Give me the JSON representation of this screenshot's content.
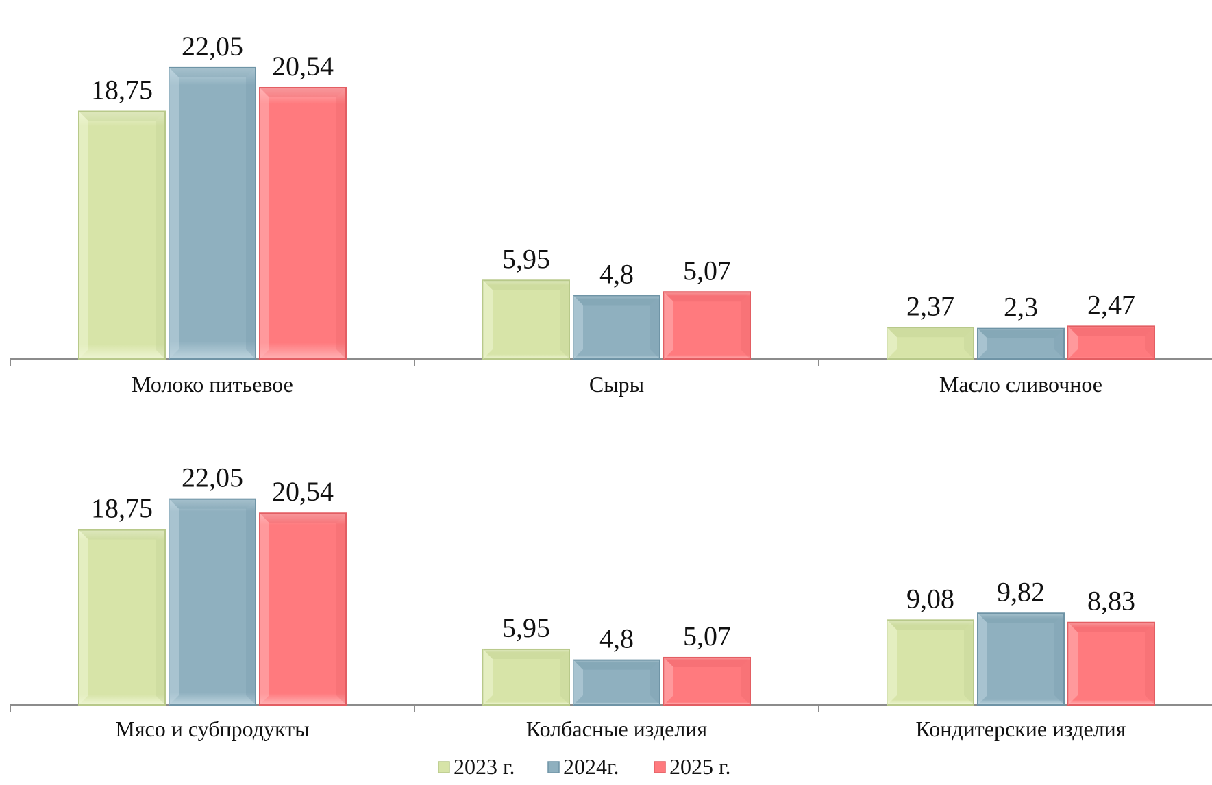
{
  "chart_data": [
    {
      "type": "bar",
      "categories": [
        "Молоко питьевое",
        "Сыры",
        "Масло сливочное"
      ],
      "series": [
        {
          "name": "2023 г.",
          "values": [
            18.75,
            5.95,
            2.37
          ],
          "labels": [
            "18,75",
            "5,95",
            "2,37"
          ]
        },
        {
          "name": "2024г.",
          "values": [
            22.05,
            4.8,
            2.3
          ],
          "labels": [
            "22,05",
            "4,8",
            "2,3"
          ]
        },
        {
          "name": "2025 г.",
          "values": [
            20.54,
            5.07,
            2.47
          ],
          "labels": [
            "20,54",
            "5,07",
            "2,47"
          ]
        }
      ],
      "ylim": [
        0,
        25
      ],
      "grid": false
    },
    {
      "type": "bar",
      "categories": [
        "Мясо и субпродукты",
        "Колбасные изделия",
        "Кондитерские изделия"
      ],
      "series": [
        {
          "name": "2023 г.",
          "values": [
            18.75,
            5.95,
            9.08
          ],
          "labels": [
            "18,75",
            "5,95",
            "9,08"
          ]
        },
        {
          "name": "2024г.",
          "values": [
            22.05,
            4.8,
            9.82
          ],
          "labels": [
            "22,05",
            "4,8",
            "9,82"
          ]
        },
        {
          "name": "2025 г.",
          "values": [
            20.54,
            5.07,
            8.83
          ],
          "labels": [
            "20,54",
            "5,07",
            "8,83"
          ]
        }
      ],
      "ylim": [
        0,
        25
      ],
      "grid": false
    }
  ],
  "legend": {
    "placement": "bottom-center",
    "items": [
      {
        "label": "2023 г.",
        "color": "#d7e4a8"
      },
      {
        "label": "2024г.",
        "color": "#8fb0bf"
      },
      {
        "label": "2025 г.",
        "color": "#ff7a7e"
      }
    ]
  },
  "colors": {
    "series": [
      "#d7e4a8",
      "#8fb0bf",
      "#ff7a7e"
    ],
    "series_dark": [
      "#b8c98a",
      "#6f94a6",
      "#e35e63"
    ],
    "series_light": [
      "#eef5d3",
      "#bdd4de",
      "#ffb3b5"
    ],
    "axis": "#8c8c8c"
  }
}
